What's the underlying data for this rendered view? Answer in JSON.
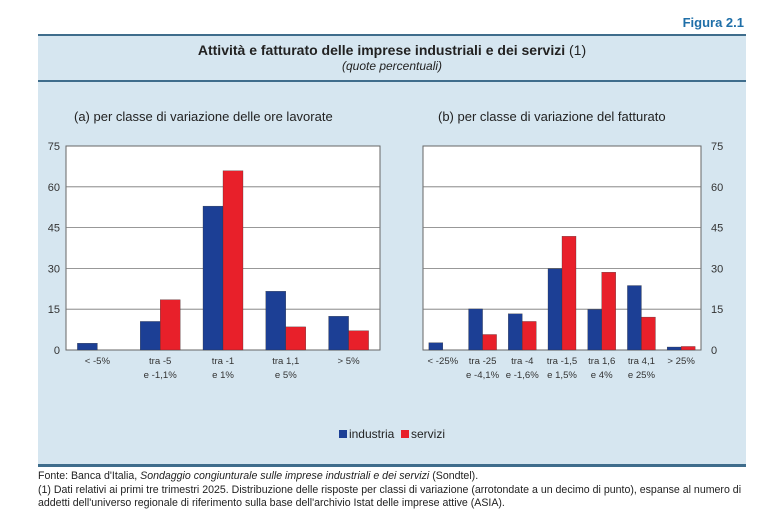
{
  "figure_label": "Figura 2.1",
  "header": {
    "title": "Attività e fatturato delle imprese industriali e dei servizi",
    "title_note": "(1)",
    "subtitle": "(quote percentuali)"
  },
  "colors": {
    "industria": "#1c3f95",
    "servizi": "#e8202a"
  },
  "chart_data": [
    {
      "type": "bar",
      "title": "(a) per classe di variazione delle ore lavorate",
      "categories": [
        [
          "< -5%"
        ],
        [
          "tra -5",
          "e -1,1%"
        ],
        [
          "tra -1",
          "e 1%"
        ],
        [
          "tra 1,1",
          "e 5%"
        ],
        [
          ">  5%"
        ]
      ],
      "series": [
        {
          "name": "industria",
          "values": [
            2.5,
            10.5,
            52.9,
            21.6,
            12.4
          ]
        },
        {
          "name": "servizi",
          "values": [
            0,
            18.5,
            65.9,
            8.5,
            7.1
          ]
        }
      ],
      "ylim": [
        0,
        75
      ],
      "yticks": [
        "0",
        "15",
        "30",
        "45",
        "60",
        "75"
      ],
      "yaxis_side": "left",
      "grid": true
    },
    {
      "type": "bar",
      "title": "(b) per classe di variazione del fatturato",
      "categories": [
        [
          "< -25%"
        ],
        [
          "tra -25",
          "e -4,1%"
        ],
        [
          "tra -4",
          "e -1,6%"
        ],
        [
          "tra -1,5",
          "e 1,5%"
        ],
        [
          "tra 1,6",
          "e 4%"
        ],
        [
          "tra 4,1",
          "e 25%"
        ],
        [
          "> 25%"
        ]
      ],
      "series": [
        {
          "name": "industria",
          "values": [
            2.7,
            15.1,
            13.3,
            29.9,
            14.9,
            23.7,
            1.1
          ]
        },
        {
          "name": "servizi",
          "values": [
            0,
            5.7,
            10.5,
            41.8,
            28.6,
            12.1,
            1.3
          ]
        }
      ],
      "ylim": [
        0,
        75
      ],
      "yticks": [
        "0",
        "15",
        "30",
        "45",
        "60",
        "75"
      ],
      "yaxis_side": "right",
      "grid": true
    }
  ],
  "legend": {
    "industria": "industria",
    "servizi": "servizi",
    "placement": "bottom-center"
  },
  "footer": {
    "source_prefix": "Fonte: Banca d'Italia, ",
    "source_title": "Sondaggio congiunturale sulle imprese industriali e dei servizi",
    "source_suffix": " (Sondtel).",
    "note": "(1) Dati relativi ai primi tre trimestri 2025. Distribuzione delle risposte per classi di variazione (arrotondate a un decimo di punto), espanse al numero di addetti dell'universo regionale di riferimento sulla base dell'archivio Istat delle imprese attive (ASIA)."
  }
}
